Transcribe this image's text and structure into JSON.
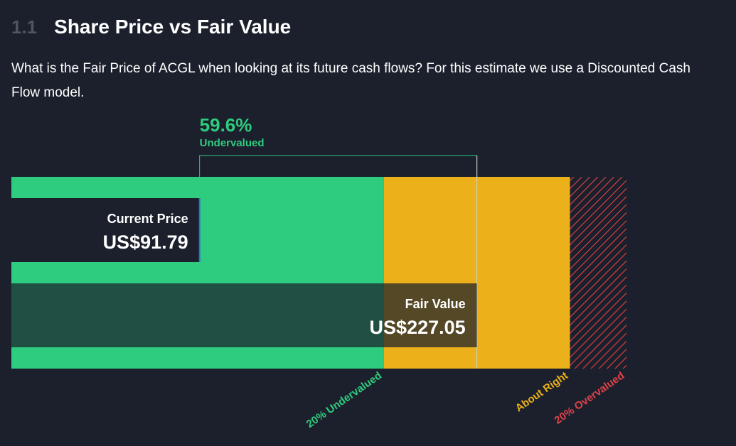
{
  "section": {
    "number": "1.1",
    "title": "Share Price vs Fair Value",
    "description": "What is the Fair Price of ACGL when looking at its future cash flows? For this estimate we use a Discounted Cash Flow model."
  },
  "chart_data": {
    "type": "bar",
    "title": "",
    "series": [
      {
        "name": "Current Price",
        "label": "US$91.79",
        "value": 91.79
      },
      {
        "name": "Fair Value",
        "label": "US$227.05",
        "value": 227.05
      }
    ],
    "difference": {
      "percent": "59.6%",
      "label": "Undervalued"
    },
    "zones": [
      {
        "label": "20% Undervalued",
        "color": "#2ecc7f",
        "from": 0,
        "to": 181.64
      },
      {
        "label": "About Right",
        "color": "#ecb01a",
        "from": 181.64,
        "to": 272.46
      },
      {
        "label": "20% Overvalued",
        "color": "#e0424a",
        "from": 272.46,
        "to": 300
      }
    ],
    "xlim": [
      0,
      300
    ]
  },
  "colors": {
    "undervalued": "#2ecc7f",
    "about_right": "#ecb01a",
    "overvalued": "#e0424a",
    "background": "#1b202c"
  }
}
